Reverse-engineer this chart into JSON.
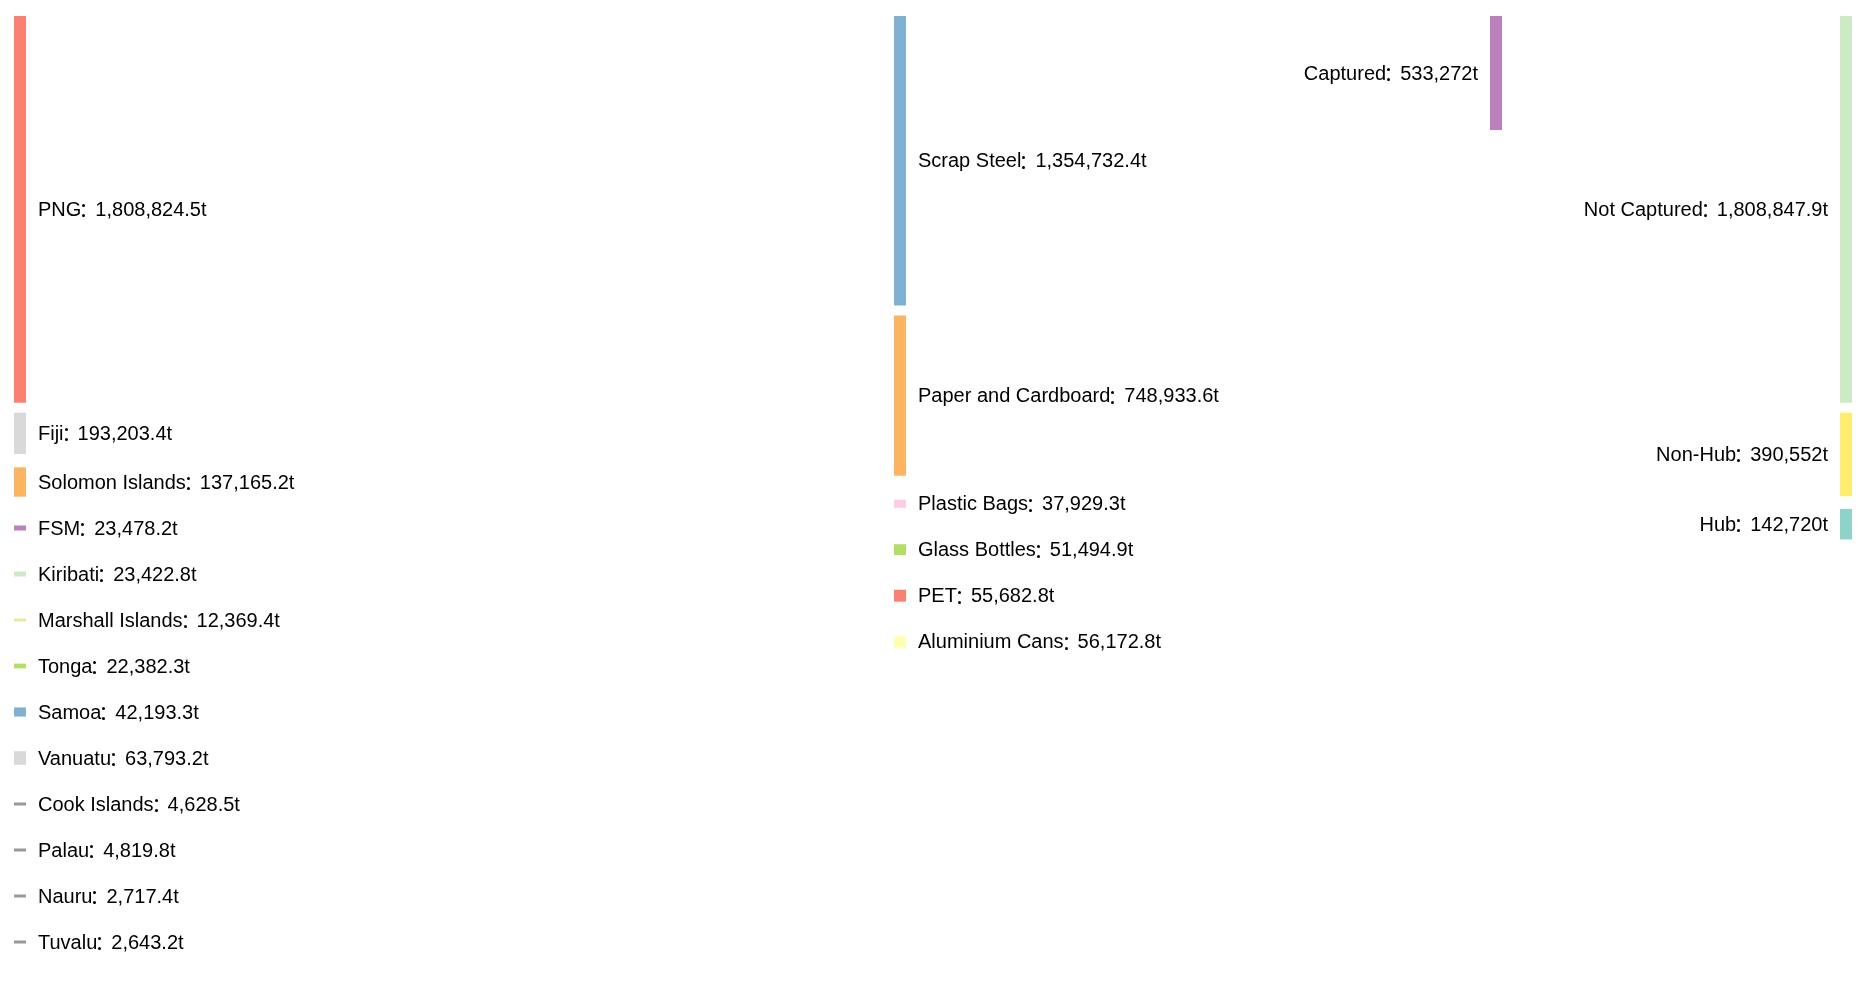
{
  "chart_data": [
    {
      "type": "other",
      "categories": [
        "PNG",
        "Fiji",
        "Solomon Islands",
        "FSM",
        "Kiribati",
        "Marshall Islands",
        "Tonga",
        "Samoa",
        "Vanuatu",
        "Cook Islands",
        "Palau",
        "Nauru",
        "Tuvalu"
      ],
      "values": [
        1808824.5,
        193203.4,
        137165.2,
        23478.2,
        23422.8,
        12369.4,
        22382.3,
        42193.3,
        63793.2,
        4628.5,
        4819.8,
        2717.4,
        2643.2
      ],
      "value_labels": [
        "1,808,824.5t",
        "193,203.4t",
        "137,165.2t",
        "23,478.2t",
        "23,422.8t",
        "12,369.4t",
        "22,382.3t",
        "42,193.3t",
        "63,793.2t",
        "4,628.5t",
        "4,819.8t",
        "2,717.4t",
        "2,643.2t"
      ],
      "colors": [
        "#fa8072",
        "#d9d9d9",
        "#fdb462",
        "#bc80bd",
        "#ccebc5",
        "#e8e8a0",
        "#b3de69",
        "#80b1d3",
        "#d9d9d9",
        "#999999",
        "#999999",
        "#999999",
        "#999999"
      ]
    },
    {
      "type": "other",
      "categories": [
        "Scrap Steel",
        "Paper and Cardboard",
        "Plastic Bags",
        "Glass Bottles",
        "PET",
        "Aluminium Cans"
      ],
      "values": [
        1354732.4,
        748933.6,
        37929.3,
        51494.9,
        55682.8,
        56172.8
      ],
      "value_labels": [
        "1,354,732.4t",
        "748,933.6t",
        "37,929.3t",
        "51,494.9t",
        "55,682.8t",
        "56,172.8t"
      ],
      "colors": [
        "#80b1d3",
        "#fdb462",
        "#fccde5",
        "#b3de69",
        "#fb8072",
        "#ffffb3"
      ]
    },
    {
      "type": "other",
      "categories": [
        "Captured"
      ],
      "values": [
        533272
      ],
      "value_labels": [
        "533,272t"
      ],
      "colors": [
        "#bc80bd"
      ]
    },
    {
      "type": "other",
      "categories": [
        "Not Captured",
        "Non-Hub",
        "Hub"
      ],
      "values": [
        1808847.9,
        390552,
        142720
      ],
      "value_labels": [
        "1,808,847.9t",
        "390,552t",
        "142,720t"
      ],
      "colors": [
        "#ccebc5",
        "#ffed6f",
        "#8dd3c7"
      ]
    }
  ]
}
